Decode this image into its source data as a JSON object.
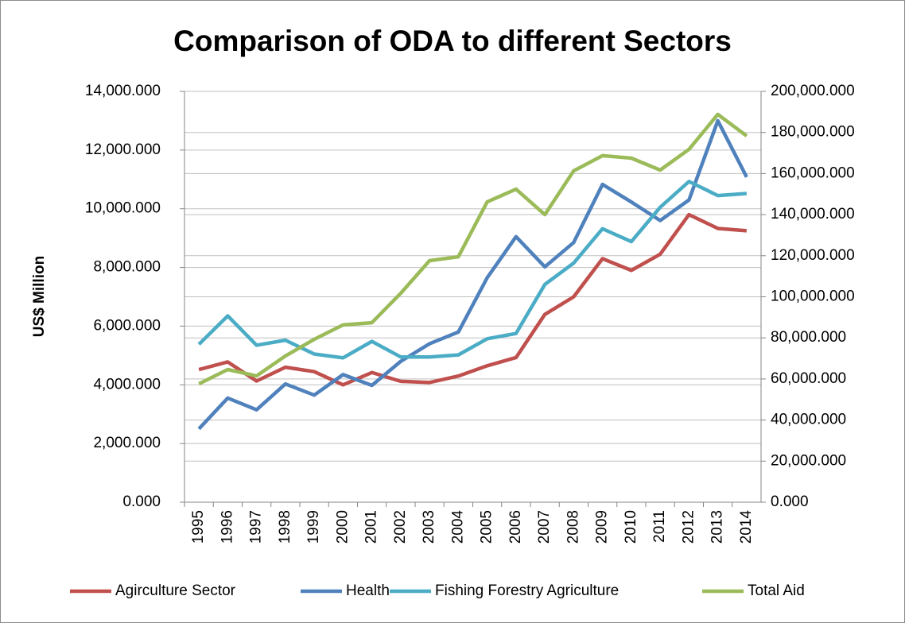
{
  "chart_data": {
    "type": "line",
    "title": "Comparison of ODA to different Sectors",
    "y_label": "US$ Million",
    "categories": [
      "1995",
      "1996",
      "1997",
      "1998",
      "1999",
      "2000",
      "2001",
      "2002",
      "2003",
      "2004",
      "2005",
      "2006",
      "2007",
      "2008",
      "2009",
      "2010",
      "2011",
      "2012",
      "2013",
      "2014"
    ],
    "series": [
      {
        "name": "Agirculture Sector",
        "color": "#c0504d",
        "values": [
          4520,
          4780,
          4130,
          4600,
          4450,
          4000,
          4420,
          4120,
          4080,
          4300,
          4650,
          4930,
          6400,
          7000,
          8300,
          7900,
          8450,
          9800,
          9330,
          9250
        ]
      },
      {
        "name": "Health",
        "color": "#4f81bd",
        "values": [
          2500,
          3550,
          3150,
          4030,
          3650,
          4350,
          3980,
          4800,
          5400,
          5800,
          7650,
          9050,
          8020,
          8850,
          10830,
          10230,
          9600,
          10300,
          13000,
          11080
        ]
      },
      {
        "name": "Fishing Forestry Agriculture",
        "color": "#4bacc6",
        "values": [
          5380,
          6350,
          5350,
          5520,
          5050,
          4920,
          5480,
          4950,
          4950,
          5020,
          5570,
          5750,
          7420,
          8150,
          9320,
          8880,
          10050,
          10930,
          10450,
          10520
        ]
      },
      {
        "name": "Total Aid",
        "color": "#9bbb59",
        "axis": "y2",
        "values": [
          57640,
          64600,
          61500,
          71200,
          79300,
          86300,
          87400,
          101700,
          117600,
          119500,
          146200,
          152400,
          140000,
          161300,
          168700,
          167500,
          161700,
          171800,
          188800,
          178300
        ]
      }
    ],
    "ylim": [
      0,
      14000
    ],
    "yticks": [
      {
        "value": 0,
        "label": "0.000"
      },
      {
        "value": 2000,
        "label": "2,000.000"
      },
      {
        "value": 4000,
        "label": "4,000.000"
      },
      {
        "value": 6000,
        "label": "6,000.000"
      },
      {
        "value": 8000,
        "label": "8,000.000"
      },
      {
        "value": 10000,
        "label": "10,000.000"
      },
      {
        "value": 12000,
        "label": "12,000.000"
      },
      {
        "value": 14000,
        "label": "14,000.000"
      }
    ],
    "y2lim": [
      0,
      200000
    ],
    "y2ticks": [
      {
        "value": 0,
        "label": "0.000"
      },
      {
        "value": 20000,
        "label": "20,000.000"
      },
      {
        "value": 40000,
        "label": "40,000.000"
      },
      {
        "value": 60000,
        "label": "60,000.000"
      },
      {
        "value": 80000,
        "label": "80,000.000"
      },
      {
        "value": 100000,
        "label": "100,000.000"
      },
      {
        "value": 120000,
        "label": "120,000.000"
      },
      {
        "value": 140000,
        "label": "140,000.000"
      },
      {
        "value": 160000,
        "label": "160,000.000"
      },
      {
        "value": 180000,
        "label": "180,000.000"
      },
      {
        "value": 200000,
        "label": "200,000.000"
      }
    ],
    "grid": true,
    "legend": "bottom"
  }
}
